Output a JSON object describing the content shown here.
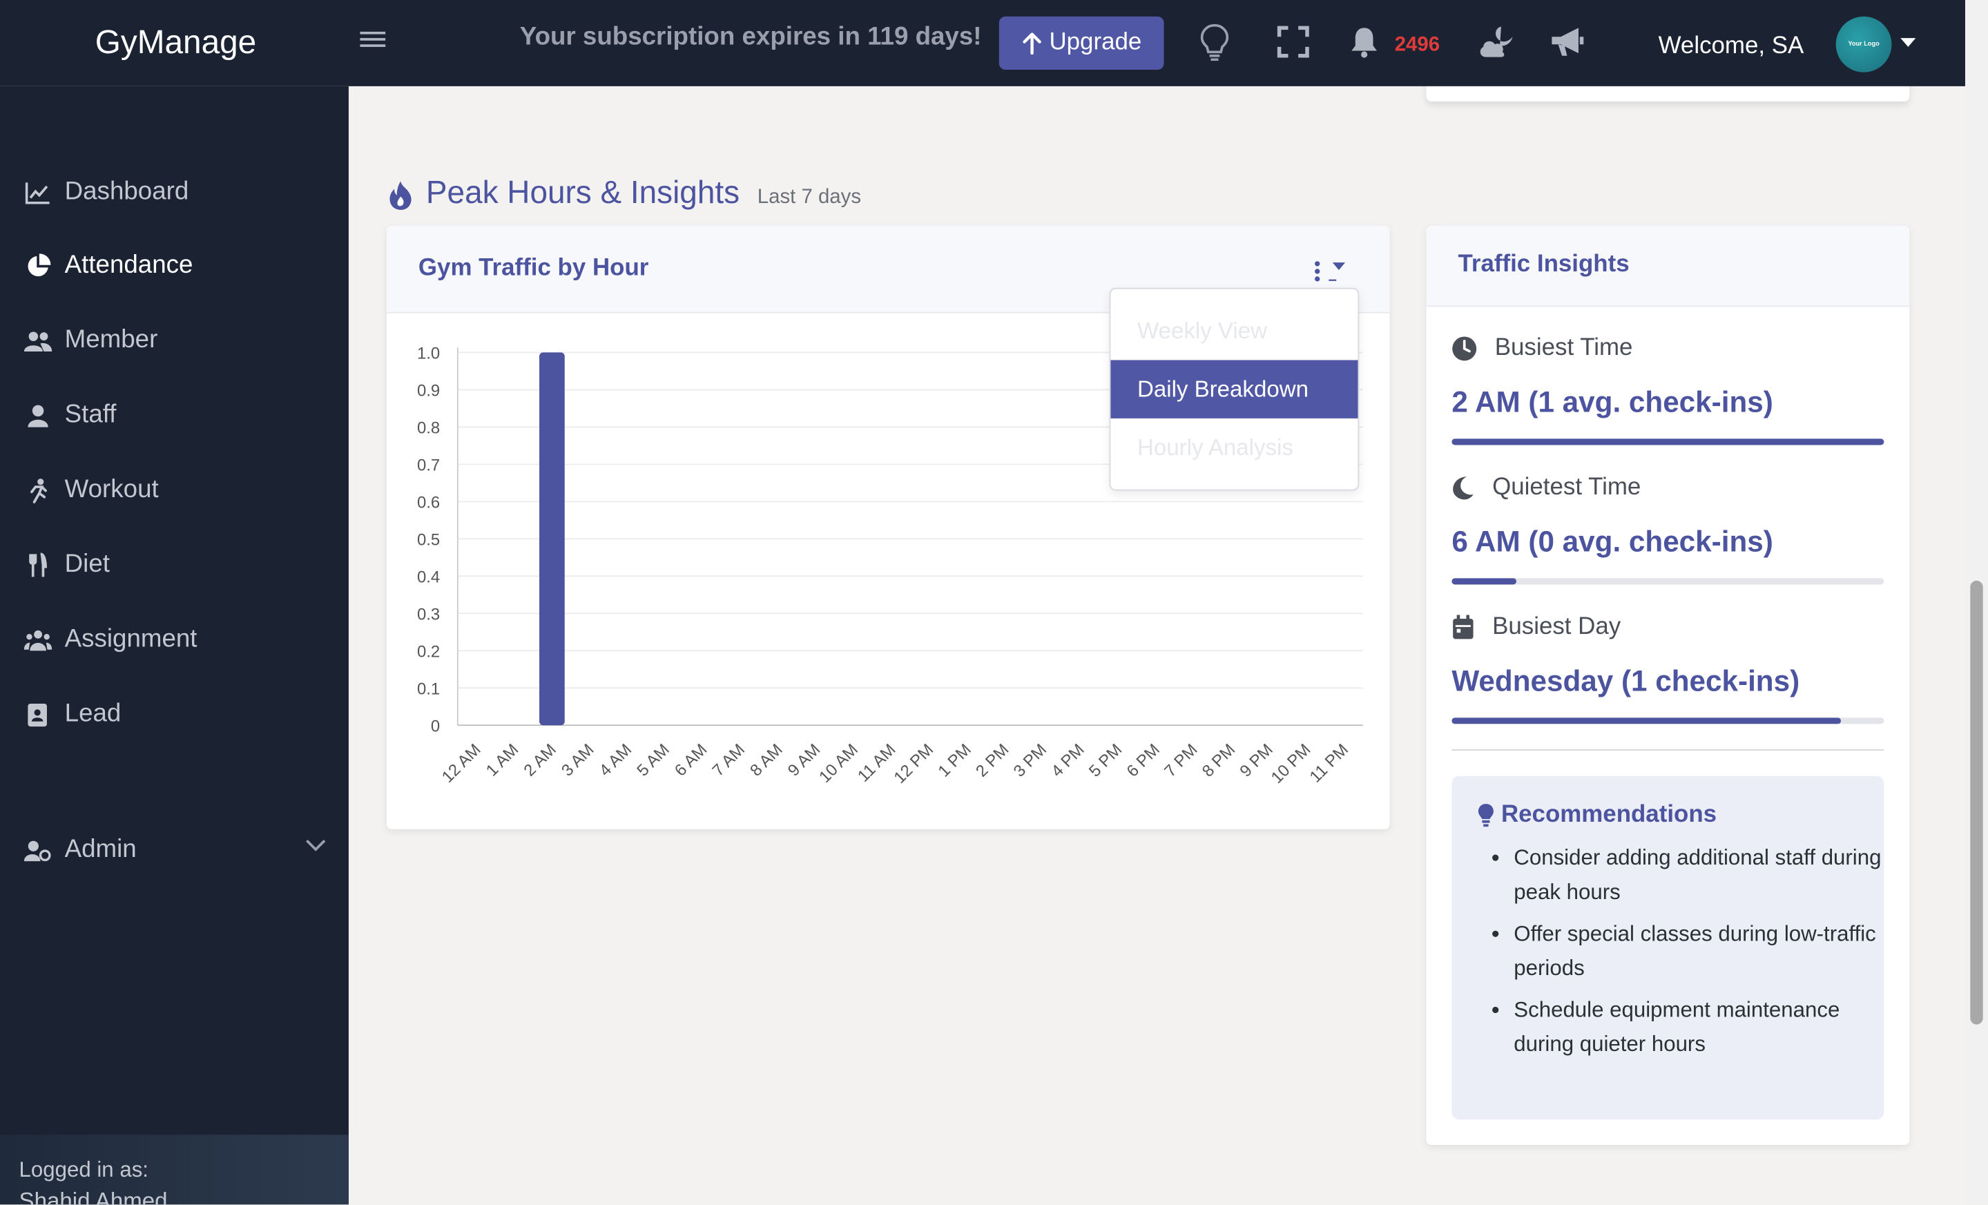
{
  "header": {
    "brand": "GyManage",
    "subscription": "Your subscription expires in 119 days!",
    "upgrade_label": "Upgrade",
    "notification_count": "2496",
    "welcome": "Welcome, SA",
    "avatar_text": "Your Logo"
  },
  "sidebar": {
    "items": [
      {
        "label": "Dashboard",
        "icon": "chart-line-icon"
      },
      {
        "label": "Attendance",
        "icon": "pie-chart-icon"
      },
      {
        "label": "Member",
        "icon": "users-icon"
      },
      {
        "label": "Staff",
        "icon": "user-icon"
      },
      {
        "label": "Workout",
        "icon": "running-icon"
      },
      {
        "label": "Diet",
        "icon": "utensils-icon"
      },
      {
        "label": "Assignment",
        "icon": "users-group-icon"
      },
      {
        "label": "Lead",
        "icon": "address-book-icon"
      },
      {
        "label": "Admin",
        "icon": "user-cog-icon"
      }
    ],
    "active": "Attendance",
    "logged_in_label": "Logged in as:",
    "logged_in_name": "Shahid Ahmed"
  },
  "section": {
    "title": "Peak Hours & Insights",
    "subtitle": "Last 7 days"
  },
  "chart_card": {
    "title": "Gym Traffic by Hour",
    "dropdown": {
      "options": [
        "Weekly View",
        "Daily Breakdown",
        "Hourly Analysis"
      ],
      "selected": "Daily Breakdown"
    }
  },
  "chart_data": {
    "type": "bar",
    "categories": [
      "12 AM",
      "1 AM",
      "2 AM",
      "3 AM",
      "4 AM",
      "5 AM",
      "6 AM",
      "7 AM",
      "8 AM",
      "9 AM",
      "10 AM",
      "11 AM",
      "12 PM",
      "1 PM",
      "2 PM",
      "3 PM",
      "4 PM",
      "5 PM",
      "6 PM",
      "7 PM",
      "8 PM",
      "9 PM",
      "10 PM",
      "11 PM"
    ],
    "values": [
      0,
      0,
      1,
      0,
      0,
      0,
      0,
      0,
      0,
      0,
      0,
      0,
      0,
      0,
      0,
      0,
      0,
      0,
      0,
      0,
      0,
      0,
      0,
      0
    ],
    "yticks": [
      "0",
      "0.1",
      "0.2",
      "0.3",
      "0.4",
      "0.5",
      "0.6",
      "0.7",
      "0.8",
      "0.9",
      "1.0"
    ],
    "ylim": [
      0,
      1
    ],
    "grid": true,
    "color": "#4c54a0"
  },
  "insights": {
    "title": "Traffic Insights",
    "busiest_time": {
      "label": "Busiest Time",
      "value": "2 AM (1 avg. check-ins)",
      "progress": 1.0
    },
    "quietest_time": {
      "label": "Quietest Time",
      "value": "6 AM (0 avg. check-ins)",
      "progress": 0.15
    },
    "busiest_day": {
      "label": "Busiest Day",
      "value": "Wednesday (1 check-ins)",
      "progress": 0.9
    },
    "recommendations_title": "Recommendations",
    "recommendations": [
      "Consider adding additional staff during peak hours",
      "Offer special classes during low-traffic periods",
      "Schedule equipment maintenance during quieter hours"
    ]
  },
  "colors": {
    "accent": "#4c54a0",
    "sidebar_bg": "#1b2333",
    "notification": "#e03b3b"
  }
}
